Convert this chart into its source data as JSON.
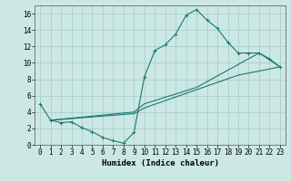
{
  "title": "",
  "xlabel": "Humidex (Indice chaleur)",
  "background_color": "#cce8e4",
  "grid_color": "#aacfcb",
  "line_color": "#1a7872",
  "xlim": [
    -0.5,
    23.5
  ],
  "ylim": [
    0,
    17
  ],
  "xticks": [
    0,
    1,
    2,
    3,
    4,
    5,
    6,
    7,
    8,
    9,
    10,
    11,
    12,
    13,
    14,
    15,
    16,
    17,
    18,
    19,
    20,
    21,
    22,
    23
  ],
  "yticks": [
    0,
    2,
    4,
    6,
    8,
    10,
    12,
    14,
    16
  ],
  "series1_x": [
    0,
    1,
    2,
    3,
    4,
    5,
    6,
    7,
    8,
    9,
    10,
    11,
    12,
    13,
    14,
    15,
    16,
    17,
    18,
    19,
    20,
    21,
    22,
    23
  ],
  "series1_y": [
    5.0,
    3.0,
    2.7,
    2.8,
    2.1,
    1.6,
    0.9,
    0.5,
    0.2,
    1.5,
    8.3,
    11.5,
    12.2,
    13.5,
    15.8,
    16.5,
    15.2,
    14.2,
    12.5,
    11.2,
    11.2,
    11.2,
    10.5,
    9.5
  ],
  "series2_x": [
    1,
    9,
    10,
    15,
    21,
    23
  ],
  "series2_y": [
    3.0,
    4.0,
    5.0,
    7.0,
    11.2,
    9.5
  ],
  "series3_x": [
    1,
    9,
    10,
    19,
    23
  ],
  "series3_y": [
    3.0,
    3.8,
    4.5,
    8.5,
    9.5
  ],
  "xlabel_fontsize": 6.5,
  "tick_fontsize": 5.5
}
